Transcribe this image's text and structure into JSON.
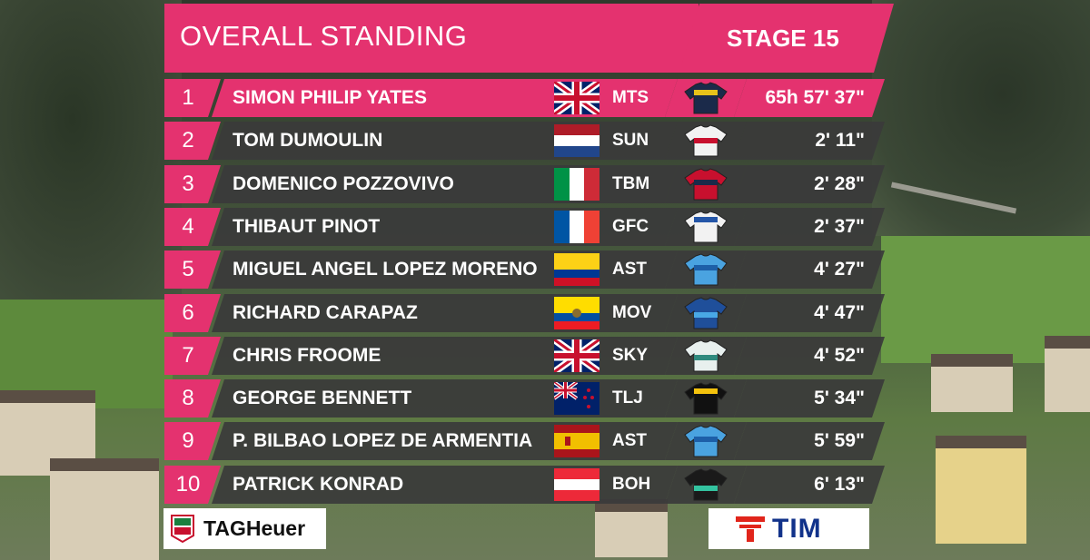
{
  "header": {
    "title": "OVERALL STANDING",
    "stage": "STAGE 15"
  },
  "colors": {
    "accent": "#e4326f",
    "row_bg": "#3a3a3a"
  },
  "rows": [
    {
      "pos": "1",
      "name": "SIMON PHILIP YATES",
      "flag": "gb",
      "team": "MTS",
      "jersey": "mts",
      "time": "65h 57' 37\""
    },
    {
      "pos": "2",
      "name": "TOM DUMOULIN",
      "flag": "nl",
      "team": "SUN",
      "jersey": "sun",
      "time": "2' 11\""
    },
    {
      "pos": "3",
      "name": "DOMENICO POZZOVIVO",
      "flag": "it",
      "team": "TBM",
      "jersey": "tbm",
      "time": "2' 28\""
    },
    {
      "pos": "4",
      "name": "THIBAUT PINOT",
      "flag": "fr",
      "team": "GFC",
      "jersey": "gfc",
      "time": "2' 37\""
    },
    {
      "pos": "5",
      "name": "MIGUEL ANGEL LOPEZ MORENO",
      "flag": "co",
      "team": "AST",
      "jersey": "ast",
      "time": "4' 27\""
    },
    {
      "pos": "6",
      "name": "RICHARD CARAPAZ",
      "flag": "ec",
      "team": "MOV",
      "jersey": "mov",
      "time": "4' 47\""
    },
    {
      "pos": "7",
      "name": "CHRIS FROOME",
      "flag": "gb",
      "team": "SKY",
      "jersey": "sky",
      "time": "4' 52\""
    },
    {
      "pos": "8",
      "name": "GEORGE BENNETT",
      "flag": "nz",
      "team": "TLJ",
      "jersey": "tlj",
      "time": "5' 34\""
    },
    {
      "pos": "9",
      "name": "P. BILBAO LOPEZ DE ARMENTIA",
      "flag": "es",
      "team": "AST",
      "jersey": "ast",
      "time": "5' 59\""
    },
    {
      "pos": "10",
      "name": "PATRICK KONRAD",
      "flag": "at",
      "team": "BOH",
      "jersey": "boh",
      "time": "6' 13\""
    }
  ],
  "sponsors": {
    "left": "TAGHeuer",
    "right": "TIM"
  }
}
